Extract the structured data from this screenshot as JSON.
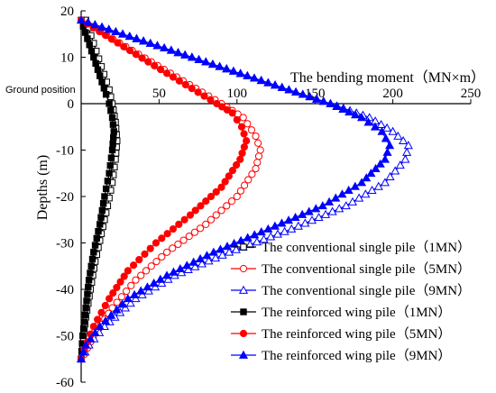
{
  "chart_data": {
    "type": "line",
    "title": "",
    "xlabel": "The bending moment（MN×m）",
    "ylabel": "Depths (m)",
    "xlim": [
      0,
      250
    ],
    "ylim": [
      -60,
      20
    ],
    "x_ticks": [
      50,
      100,
      150,
      200,
      250
    ],
    "y_ticks": [
      20,
      10,
      0,
      -10,
      -20,
      -30,
      -40,
      -50,
      -60
    ],
    "x_axis_position": "top (at depth 0)",
    "grid": false,
    "legend_position": "bottom-right",
    "annotations": [
      {
        "text": "Ground position",
        "y": 0
      }
    ],
    "series": [
      {
        "name": "The conventional single pile（1MN）",
        "color": "#000000",
        "marker": "square-open",
        "points": [
          [
            3,
            18
          ],
          [
            8,
            13
          ],
          [
            13,
            8
          ],
          [
            18,
            3
          ],
          [
            20,
            0
          ],
          [
            22,
            -4
          ],
          [
            23,
            -8
          ],
          [
            22,
            -12
          ],
          [
            20,
            -17
          ],
          [
            17,
            -22
          ],
          [
            13,
            -28
          ],
          [
            9,
            -34
          ],
          [
            6,
            -40
          ],
          [
            3,
            -46
          ],
          [
            1,
            -52
          ],
          [
            0,
            -55
          ]
        ]
      },
      {
        "name": "The conventional single pile（5MN）",
        "color": "#ff0000",
        "marker": "circle-open",
        "points": [
          [
            0,
            18
          ],
          [
            45,
            9
          ],
          [
            90,
            0
          ],
          [
            104,
            -3
          ],
          [
            112,
            -7
          ],
          [
            115,
            -10
          ],
          [
            112,
            -14
          ],
          [
            100,
            -20
          ],
          [
            80,
            -26
          ],
          [
            55,
            -32
          ],
          [
            35,
            -38
          ],
          [
            20,
            -44
          ],
          [
            8,
            -50
          ],
          [
            2,
            -54
          ],
          [
            0,
            -55
          ]
        ]
      },
      {
        "name": "The conventional single pile（9MN）",
        "color": "#0000ff",
        "marker": "triangle-open",
        "points": [
          [
            0,
            18
          ],
          [
            80,
            9
          ],
          [
            160,
            0
          ],
          [
            185,
            -3
          ],
          [
            200,
            -6
          ],
          [
            210,
            -9
          ],
          [
            208,
            -12
          ],
          [
            195,
            -17
          ],
          [
            170,
            -22
          ],
          [
            135,
            -27
          ],
          [
            95,
            -32
          ],
          [
            60,
            -37
          ],
          [
            35,
            -42
          ],
          [
            15,
            -48
          ],
          [
            5,
            -52
          ],
          [
            0,
            -55
          ]
        ]
      },
      {
        "name": "The reinforced wing pile（1MN）",
        "color": "#000000",
        "marker": "square-filled",
        "points": [
          [
            0,
            18
          ],
          [
            4,
            14
          ],
          [
            8,
            10
          ],
          [
            12,
            6
          ],
          [
            16,
            2
          ],
          [
            18,
            0
          ],
          [
            20,
            -3
          ],
          [
            21,
            -6
          ],
          [
            20,
            -10
          ],
          [
            18,
            -15
          ],
          [
            15,
            -20
          ],
          [
            12,
            -26
          ],
          [
            8,
            -32
          ],
          [
            5,
            -38
          ],
          [
            3,
            -44
          ],
          [
            1,
            -50
          ],
          [
            0,
            -55
          ]
        ]
      },
      {
        "name": "The reinforced wing pile（5MN）",
        "color": "#ff0000",
        "marker": "circle-filled",
        "points": [
          [
            0,
            18
          ],
          [
            43,
            9
          ],
          [
            87,
            0
          ],
          [
            97,
            -2
          ],
          [
            103,
            -5
          ],
          [
            106,
            -8
          ],
          [
            102,
            -12
          ],
          [
            90,
            -18
          ],
          [
            70,
            -24
          ],
          [
            48,
            -30
          ],
          [
            30,
            -36
          ],
          [
            18,
            -42
          ],
          [
            8,
            -48
          ],
          [
            2,
            -53
          ],
          [
            0,
            -55
          ]
        ]
      },
      {
        "name": "The reinforced wing pile（9MN）",
        "color": "#0000ff",
        "marker": "triangle-filled",
        "points": [
          [
            0,
            18
          ],
          [
            80,
            9
          ],
          [
            160,
            0
          ],
          [
            180,
            -3
          ],
          [
            193,
            -6
          ],
          [
            198,
            -9
          ],
          [
            195,
            -12
          ],
          [
            180,
            -17
          ],
          [
            155,
            -22
          ],
          [
            120,
            -27
          ],
          [
            85,
            -32
          ],
          [
            55,
            -37
          ],
          [
            30,
            -42
          ],
          [
            12,
            -48
          ],
          [
            3,
            -52
          ],
          [
            0,
            -55
          ]
        ]
      }
    ]
  }
}
